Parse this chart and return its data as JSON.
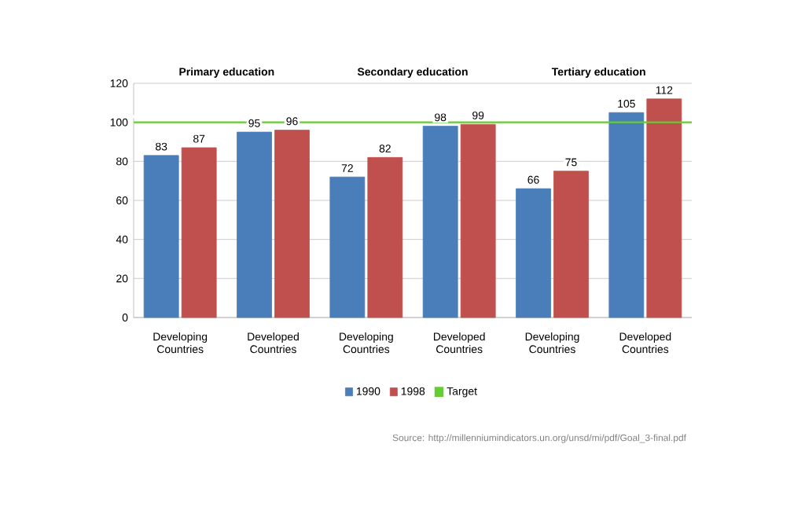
{
  "chart_data": {
    "type": "bar",
    "categories": [
      "Developing Countries",
      "Developed Countries",
      "Developing Countries",
      "Developed Countries",
      "Developing Countries",
      "Developed Countries"
    ],
    "series": [
      {
        "name": "1990",
        "color": "#4a7ebb",
        "values": [
          83,
          95,
          72,
          98,
          66,
          105
        ]
      },
      {
        "name": "1998",
        "color": "#c0504d",
        "values": [
          87,
          96,
          82,
          99,
          75,
          112
        ]
      }
    ],
    "ref_lines": [
      {
        "axis": "y",
        "value": 100,
        "label": "Target",
        "color": "#66cc33"
      }
    ],
    "ylim": [
      0,
      120
    ],
    "yticks": [
      0,
      20,
      40,
      60,
      80,
      100,
      120
    ],
    "grid": "y",
    "legend": "bottom",
    "data_labels": true,
    "annotations": [
      "Primary education",
      "Secondary education",
      "Tertiary education",
      "Source: http://millenniumindicators.un.org/unsd/mi/pdf/Goal_3-final.pdf"
    ]
  }
}
